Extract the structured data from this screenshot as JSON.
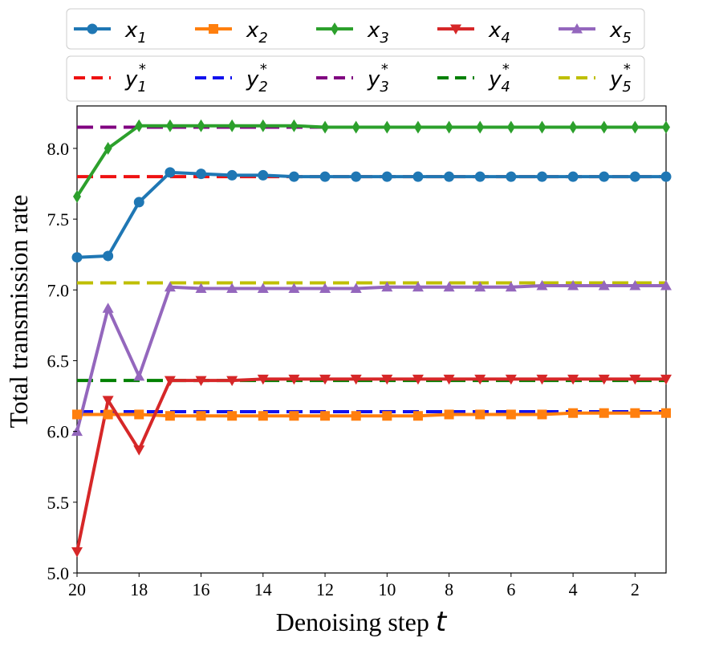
{
  "chart_data": {
    "type": "line",
    "xlabel": "Denoising step",
    "xlabel_var": "t",
    "ylabel": "Total transmission rate",
    "xlim": [
      20,
      1
    ],
    "ylim": [
      5.0,
      8.3
    ],
    "xticks": [
      20,
      18,
      16,
      14,
      12,
      10,
      8,
      6,
      4,
      2
    ],
    "yticks": [
      5.0,
      5.5,
      6.0,
      6.5,
      7.0,
      7.5,
      8.0
    ],
    "x": [
      20,
      19,
      18,
      17,
      16,
      15,
      14,
      13,
      12,
      11,
      10,
      9,
      8,
      7,
      6,
      5,
      4,
      3,
      2,
      1
    ],
    "series": [
      {
        "name": "x",
        "sub": "1",
        "color": "#1f77b4",
        "marker": "circle",
        "values": [
          7.23,
          7.24,
          7.62,
          7.83,
          7.82,
          7.81,
          7.81,
          7.8,
          7.8,
          7.8,
          7.8,
          7.8,
          7.8,
          7.8,
          7.8,
          7.8,
          7.8,
          7.8,
          7.8,
          7.8
        ]
      },
      {
        "name": "x",
        "sub": "2",
        "color": "#ff7f0e",
        "marker": "square",
        "values": [
          6.12,
          6.12,
          6.12,
          6.11,
          6.11,
          6.11,
          6.11,
          6.11,
          6.11,
          6.11,
          6.11,
          6.11,
          6.12,
          6.12,
          6.12,
          6.12,
          6.13,
          6.13,
          6.13,
          6.13
        ]
      },
      {
        "name": "x",
        "sub": "3",
        "color": "#2ca02c",
        "marker": "diamond",
        "values": [
          7.66,
          8.0,
          8.16,
          8.16,
          8.16,
          8.16,
          8.16,
          8.16,
          8.15,
          8.15,
          8.15,
          8.15,
          8.15,
          8.15,
          8.15,
          8.15,
          8.15,
          8.15,
          8.15,
          8.15
        ]
      },
      {
        "name": "x",
        "sub": "4",
        "color": "#d62728",
        "marker": "triangle-down",
        "values": [
          5.15,
          6.22,
          5.87,
          6.36,
          6.36,
          6.36,
          6.37,
          6.37,
          6.37,
          6.37,
          6.37,
          6.37,
          6.37,
          6.37,
          6.37,
          6.37,
          6.37,
          6.37,
          6.37,
          6.37
        ]
      },
      {
        "name": "x",
        "sub": "5",
        "color": "#9467bd",
        "marker": "triangle-up",
        "values": [
          6.0,
          6.87,
          6.39,
          7.02,
          7.01,
          7.01,
          7.01,
          7.01,
          7.01,
          7.01,
          7.02,
          7.02,
          7.02,
          7.02,
          7.02,
          7.03,
          7.03,
          7.03,
          7.03,
          7.03
        ]
      }
    ],
    "reference_lines": [
      {
        "name": "y",
        "sub": "1",
        "sup": "*",
        "color": "#ee1111",
        "value": 7.8
      },
      {
        "name": "y",
        "sub": "2",
        "sup": "*",
        "color": "#1111ee",
        "value": 6.14
      },
      {
        "name": "y",
        "sub": "3",
        "sup": "*",
        "color": "#800080",
        "value": 8.15
      },
      {
        "name": "y",
        "sub": "4",
        "sup": "*",
        "color": "#008000",
        "value": 6.36
      },
      {
        "name": "y",
        "sub": "5",
        "sup": "*",
        "color": "#bfbf00",
        "value": 7.05
      }
    ],
    "legend": {
      "placement": "top",
      "rows": 2
    }
  }
}
